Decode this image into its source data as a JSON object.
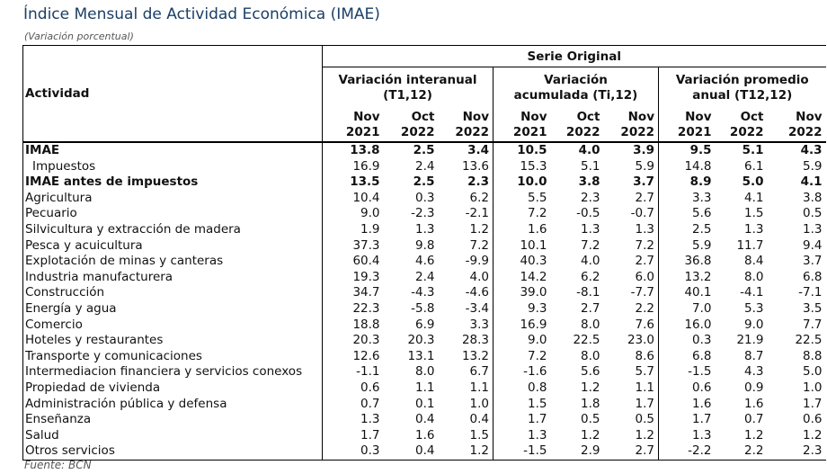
{
  "title": "Índice Mensual de Actividad Económica (IMAE)",
  "subtitle": "(Variación porcentual)",
  "source": "Fuente: BCN",
  "header": {
    "serie": "Serie Original",
    "activity": "Actividad",
    "groups": [
      {
        "line1": "Variación interanual",
        "line2": "(T1,12)"
      },
      {
        "line1": "Variación",
        "line2": "acumulada (Ti,12)"
      },
      {
        "line1": "Variación promedio",
        "line2": "anual (T12,12)"
      }
    ],
    "periods": [
      {
        "month": "Nov",
        "year": "2021"
      },
      {
        "month": "Oct",
        "year": "2022"
      },
      {
        "month": "Nov",
        "year": "2022"
      },
      {
        "month": "Nov",
        "year": "2021"
      },
      {
        "month": "Oct",
        "year": "2022"
      },
      {
        "month": "Nov",
        "year": "2022"
      },
      {
        "month": "Nov",
        "year": "2021"
      },
      {
        "month": "Oct",
        "year": "2022"
      },
      {
        "month": "Nov",
        "year": "2022"
      }
    ]
  },
  "rows": [
    {
      "label": "IMAE",
      "bold": true,
      "values": [
        "13.8",
        "2.5",
        "3.4",
        "10.5",
        "4.0",
        "3.9",
        "9.5",
        "5.1",
        "4.3"
      ]
    },
    {
      "label": "Impuestos",
      "indent": true,
      "values": [
        "16.9",
        "2.4",
        "13.6",
        "15.3",
        "5.1",
        "5.9",
        "14.8",
        "6.1",
        "5.9"
      ]
    },
    {
      "label": "IMAE antes de impuestos",
      "bold": true,
      "values": [
        "13.5",
        "2.5",
        "2.3",
        "10.0",
        "3.8",
        "3.7",
        "8.9",
        "5.0",
        "4.1"
      ]
    },
    {
      "label": "Agricultura",
      "values": [
        "10.4",
        "0.3",
        "6.2",
        "5.5",
        "2.3",
        "2.7",
        "3.3",
        "4.1",
        "3.8"
      ]
    },
    {
      "label": "Pecuario",
      "values": [
        "9.0",
        "-2.3",
        "-2.1",
        "7.2",
        "-0.5",
        "-0.7",
        "5.6",
        "1.5",
        "0.5"
      ]
    },
    {
      "label": "Silvicultura y extracción de madera",
      "values": [
        "1.9",
        "1.3",
        "1.2",
        "1.6",
        "1.3",
        "1.3",
        "2.5",
        "1.3",
        "1.3"
      ]
    },
    {
      "label": "Pesca y acuicultura",
      "values": [
        "37.3",
        "9.8",
        "7.2",
        "10.1",
        "7.2",
        "7.2",
        "5.9",
        "11.7",
        "9.4"
      ]
    },
    {
      "label": "Explotación de minas y canteras",
      "values": [
        "60.4",
        "4.6",
        "-9.9",
        "40.3",
        "4.0",
        "2.7",
        "36.8",
        "8.4",
        "3.7"
      ]
    },
    {
      "label": "Industria manufacturera",
      "values": [
        "19.3",
        "2.4",
        "4.0",
        "14.2",
        "6.2",
        "6.0",
        "13.2",
        "8.0",
        "6.8"
      ]
    },
    {
      "label": "Construcción",
      "values": [
        "34.7",
        "-4.3",
        "-4.6",
        "39.0",
        "-8.1",
        "-7.7",
        "40.1",
        "-4.1",
        "-7.1"
      ]
    },
    {
      "label": "Energía y agua",
      "values": [
        "22.3",
        "-5.8",
        "-3.4",
        "9.3",
        "2.7",
        "2.2",
        "7.0",
        "5.3",
        "3.5"
      ]
    },
    {
      "label": "Comercio",
      "values": [
        "18.8",
        "6.9",
        "3.3",
        "16.9",
        "8.0",
        "7.6",
        "16.0",
        "9.0",
        "7.7"
      ]
    },
    {
      "label": "Hoteles y restaurantes",
      "values": [
        "20.3",
        "20.3",
        "28.3",
        "9.0",
        "22.5",
        "23.0",
        "0.3",
        "21.9",
        "22.5"
      ]
    },
    {
      "label": "Transporte y comunicaciones",
      "values": [
        "12.6",
        "13.1",
        "13.2",
        "7.2",
        "8.0",
        "8.6",
        "6.8",
        "8.7",
        "8.8"
      ]
    },
    {
      "label": "Intermediacion financiera y servicios conexos",
      "values": [
        "-1.1",
        "8.0",
        "6.7",
        "-1.6",
        "5.6",
        "5.7",
        "-1.5",
        "4.3",
        "5.0"
      ]
    },
    {
      "label": "Propiedad de vivienda",
      "values": [
        "0.6",
        "1.1",
        "1.1",
        "0.8",
        "1.2",
        "1.1",
        "0.6",
        "0.9",
        "1.0"
      ]
    },
    {
      "label": "Administración pública y defensa",
      "values": [
        "0.7",
        "0.1",
        "1.0",
        "1.5",
        "1.8",
        "1.7",
        "1.6",
        "1.6",
        "1.7"
      ]
    },
    {
      "label": "Enseñanza",
      "values": [
        "1.3",
        "0.4",
        "0.4",
        "1.7",
        "0.5",
        "0.5",
        "1.7",
        "0.7",
        "0.6"
      ]
    },
    {
      "label": "Salud",
      "values": [
        "1.7",
        "1.6",
        "1.5",
        "1.3",
        "1.2",
        "1.2",
        "1.3",
        "1.2",
        "1.2"
      ]
    },
    {
      "label": "Otros servicios",
      "values": [
        "0.3",
        "0.4",
        "1.2",
        "-1.5",
        "2.9",
        "2.7",
        "-2.2",
        "2.2",
        "2.3"
      ]
    }
  ]
}
